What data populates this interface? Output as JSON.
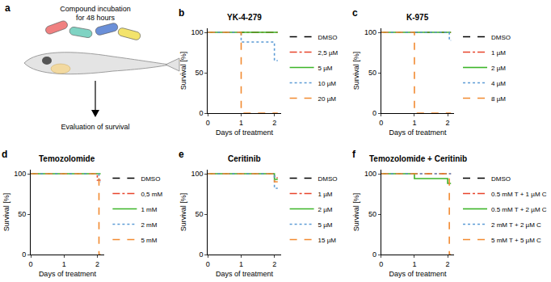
{
  "panel_a": {
    "panel_label": "a",
    "caption": [
      "Compound incubation",
      "for 48 hours"
    ],
    "result": "Evaluation of survival"
  },
  "chart_data": [
    {
      "panel_label": "b",
      "type": "line",
      "title": "YK-4-279",
      "x_label": "Days of treatment",
      "y_label": "Survival [%]",
      "xlim": [
        0,
        2.2
      ],
      "ylim": [
        0,
        105
      ],
      "xticks": [
        0,
        1,
        2
      ],
      "yticks": [
        0,
        50,
        100
      ],
      "grid": false,
      "series": [
        {
          "name": "DMSO",
          "color": "#000000",
          "line_style": "dash",
          "x": [
            0,
            2.1
          ],
          "values": [
            100,
            100
          ]
        },
        {
          "name": "2,5 µM",
          "color": "#e8452c",
          "line_style": "dashdot",
          "x": [
            0,
            2.1
          ],
          "values": [
            100,
            100
          ]
        },
        {
          "name": "5 µM",
          "color": "#3cb528",
          "line_style": "solid",
          "x": [
            0,
            2.1
          ],
          "values": [
            100,
            100
          ]
        },
        {
          "name": "10 µM",
          "color": "#5b9bd5",
          "line_style": "dot",
          "x": [
            0,
            1,
            2,
            2.1
          ],
          "values": [
            100,
            88,
            65,
            65
          ]
        },
        {
          "name": "20 µM",
          "color": "#f28a30",
          "line_style": "dash",
          "x": [
            0,
            1,
            2.1
          ],
          "values": [
            100,
            0,
            0
          ]
        }
      ]
    },
    {
      "panel_label": "c",
      "type": "line",
      "title": "K-975",
      "x_label": "Days of treatment",
      "y_label": "Survival [%]",
      "xlim": [
        0,
        2.2
      ],
      "ylim": [
        0,
        105
      ],
      "xticks": [
        0,
        1,
        2
      ],
      "yticks": [
        0,
        50,
        100
      ],
      "grid": false,
      "series": [
        {
          "name": "DMSO",
          "color": "#000000",
          "line_style": "dash",
          "x": [
            0,
            2.1
          ],
          "values": [
            100,
            100
          ]
        },
        {
          "name": "1 µM",
          "color": "#e8452c",
          "line_style": "dashdot",
          "x": [
            0,
            2.1
          ],
          "values": [
            100,
            100
          ]
        },
        {
          "name": "2 µM",
          "color": "#3cb528",
          "line_style": "solid",
          "x": [
            0,
            2.1
          ],
          "values": [
            100,
            100
          ]
        },
        {
          "name": "4 µM",
          "color": "#5b9bd5",
          "line_style": "dot",
          "x": [
            0,
            2.05,
            2.1
          ],
          "values": [
            100,
            90,
            90
          ]
        },
        {
          "name": "8 µM",
          "color": "#f28a30",
          "line_style": "dash",
          "x": [
            0,
            1,
            2.1
          ],
          "values": [
            100,
            0,
            0
          ]
        }
      ]
    },
    {
      "panel_label": "d",
      "type": "line",
      "title": "Temozolomide",
      "x_label": "Days of treatment",
      "y_label": "Survival [%]",
      "xlim": [
        0,
        2.2
      ],
      "ylim": [
        0,
        105
      ],
      "xticks": [
        0,
        1,
        2
      ],
      "yticks": [
        0,
        50,
        100
      ],
      "grid": false,
      "series": [
        {
          "name": "DMSO",
          "color": "#000000",
          "line_style": "dash",
          "x": [
            0,
            2.1
          ],
          "values": [
            100,
            100
          ]
        },
        {
          "name": "0,5 mM",
          "color": "#e8452c",
          "line_style": "dashdot",
          "x": [
            0,
            2,
            2.1
          ],
          "values": [
            100,
            92,
            92
          ]
        },
        {
          "name": "1 mM",
          "color": "#3cb528",
          "line_style": "solid",
          "x": [
            0,
            2.1
          ],
          "values": [
            100,
            100
          ]
        },
        {
          "name": "2 mM",
          "color": "#5b9bd5",
          "line_style": "dot",
          "x": [
            0,
            2.05,
            2.1
          ],
          "values": [
            100,
            90,
            90
          ]
        },
        {
          "name": "5 mM",
          "color": "#f28a30",
          "line_style": "dash",
          "x": [
            0,
            2.05,
            2.1
          ],
          "values": [
            100,
            0,
            0
          ]
        }
      ]
    },
    {
      "panel_label": "e",
      "type": "line",
      "title": "Ceritinib",
      "x_label": "Days of treatment",
      "y_label": "Survival [%]",
      "xlim": [
        0,
        2.2
      ],
      "ylim": [
        0,
        105
      ],
      "xticks": [
        0,
        1,
        2
      ],
      "yticks": [
        0,
        50,
        100
      ],
      "grid": false,
      "series": [
        {
          "name": "DMSO",
          "color": "#000000",
          "line_style": "dash",
          "x": [
            0,
            2.1
          ],
          "values": [
            100,
            100
          ]
        },
        {
          "name": "1 µM",
          "color": "#e8452c",
          "line_style": "dashdot",
          "x": [
            0,
            2,
            2.1
          ],
          "values": [
            100,
            95,
            95
          ]
        },
        {
          "name": "2 µM",
          "color": "#3cb528",
          "line_style": "solid",
          "x": [
            0,
            2,
            2.1
          ],
          "values": [
            100,
            93,
            93
          ]
        },
        {
          "name": "5 µM",
          "color": "#5b9bd5",
          "line_style": "dot",
          "x": [
            0,
            2,
            2.1
          ],
          "values": [
            100,
            82,
            82
          ]
        },
        {
          "name": "15 µM",
          "color": "#f28a30",
          "line_style": "dash",
          "x": [
            0,
            2,
            2.1
          ],
          "values": [
            100,
            90,
            90
          ]
        }
      ]
    },
    {
      "panel_label": "f",
      "type": "line",
      "title": "Temozolomide + Ceritinib",
      "x_label": "Days of treatment",
      "y_label": "Survival [%]",
      "xlim": [
        0,
        2.2
      ],
      "ylim": [
        0,
        105
      ],
      "xticks": [
        0,
        1,
        2
      ],
      "yticks": [
        0,
        50,
        100
      ],
      "grid": false,
      "series": [
        {
          "name": "DMSO",
          "color": "#000000",
          "line_style": "dash",
          "x": [
            0,
            2.1
          ],
          "values": [
            100,
            100
          ]
        },
        {
          "name": "0.5 mM T + 1 µM C",
          "color": "#e8452c",
          "line_style": "dashdot",
          "x": [
            0,
            2.1
          ],
          "values": [
            100,
            100
          ]
        },
        {
          "name": "0.5 mM T + 2 µM C",
          "color": "#3cb528",
          "line_style": "solid",
          "x": [
            0,
            1,
            2,
            2.1
          ],
          "values": [
            100,
            94,
            88,
            88
          ]
        },
        {
          "name": "2 mM T + 2 µM C",
          "color": "#5b9bd5",
          "line_style": "dot",
          "x": [
            0,
            2.1
          ],
          "values": [
            100,
            100
          ]
        },
        {
          "name": "5 mM T + 5 µM C",
          "color": "#f28a30",
          "line_style": "dash",
          "x": [
            0,
            2.05,
            2.1
          ],
          "values": [
            100,
            0,
            0
          ]
        }
      ]
    }
  ]
}
